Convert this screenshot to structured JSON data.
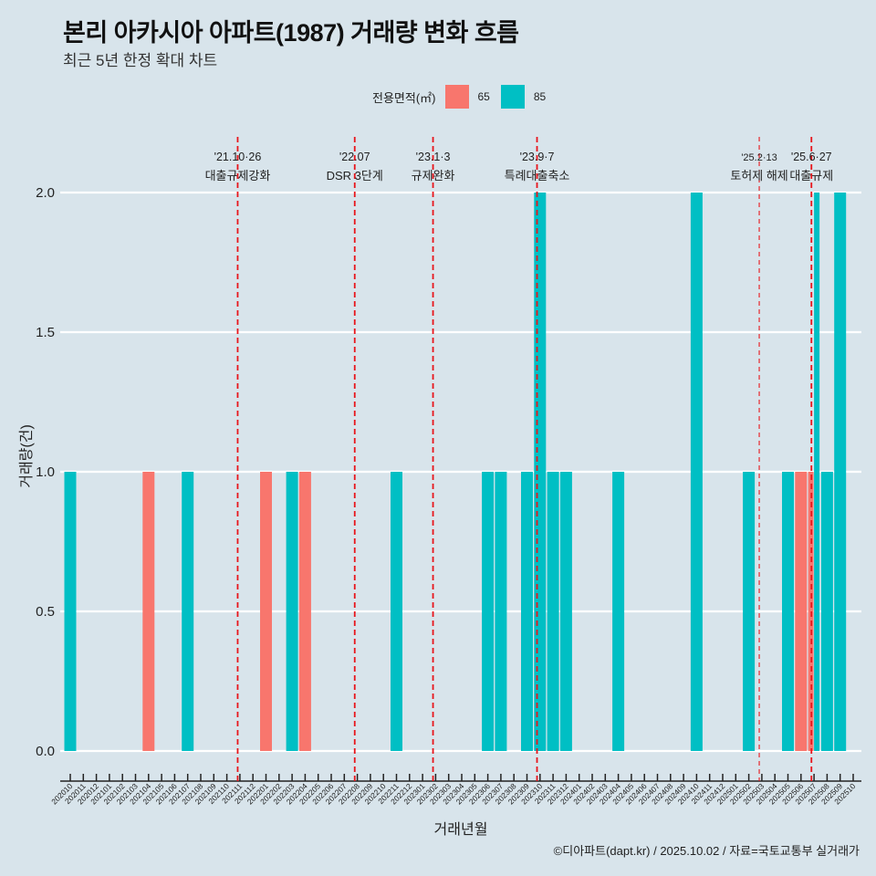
{
  "header": {
    "title": "본리 아카시아 아파트(1987) 거래량 변화 흐름",
    "subtitle": "최근 5년 한정 확대 차트"
  },
  "legend": {
    "title": "전용면적(㎡)",
    "items": [
      {
        "label": "65",
        "color": "#F8766D"
      },
      {
        "label": "85",
        "color": "#00BFC4"
      }
    ]
  },
  "caption": "©디아파트(dapt.kr) / 2025.10.02 / 자료=국토교통부 실거래가",
  "chart_data": {
    "type": "bar",
    "title": "본리 아카시아 아파트(1987) 거래량 변화 흐름",
    "subtitle": "최근 5년 한정 확대 차트",
    "xlabel": "거래년월",
    "ylabel": "거래량(건)",
    "ylim": [
      0,
      2
    ],
    "yticks": [
      "0.0",
      "0.5",
      "1.0",
      "1.5",
      "2.0"
    ],
    "ytick_values": [
      0,
      0.5,
      1.0,
      1.5,
      2.0
    ],
    "grid": true,
    "legend_position": "top",
    "categories": [
      "202010",
      "202011",
      "202012",
      "202101",
      "202102",
      "202103",
      "202104",
      "202105",
      "202106",
      "202107",
      "202108",
      "202109",
      "202110",
      "202111",
      "202112",
      "202201",
      "202202",
      "202203",
      "202204",
      "202205",
      "202206",
      "202207",
      "202208",
      "202209",
      "202210",
      "202211",
      "202212",
      "202301",
      "202302",
      "202303",
      "202304",
      "202305",
      "202306",
      "202307",
      "202308",
      "202309",
      "202310",
      "202311",
      "202312",
      "202401",
      "202402",
      "202403",
      "202404",
      "202405",
      "202406",
      "202407",
      "202408",
      "202409",
      "202410",
      "202411",
      "202412",
      "202501",
      "202502",
      "202503",
      "202504",
      "202505",
      "202506",
      "202507",
      "202508",
      "202509",
      "202510"
    ],
    "series": [
      {
        "name": "65",
        "color": "#F8766D",
        "points": [
          {
            "x": "202104",
            "y": 1
          },
          {
            "x": "202201",
            "y": 1
          },
          {
            "x": "202204",
            "y": 1
          },
          {
            "x": "202506",
            "y": 1
          },
          {
            "x": "202507",
            "y": 1
          }
        ]
      },
      {
        "name": "85",
        "color": "#00BFC4",
        "points": [
          {
            "x": "202010",
            "y": 1
          },
          {
            "x": "202107",
            "y": 1
          },
          {
            "x": "202203",
            "y": 1
          },
          {
            "x": "202211",
            "y": 1
          },
          {
            "x": "202306",
            "y": 1
          },
          {
            "x": "202307",
            "y": 1
          },
          {
            "x": "202309",
            "y": 1
          },
          {
            "x": "202310",
            "y": 2
          },
          {
            "x": "202311",
            "y": 1
          },
          {
            "x": "202312",
            "y": 1
          },
          {
            "x": "202404",
            "y": 1
          },
          {
            "x": "202410",
            "y": 2
          },
          {
            "x": "202502",
            "y": 1
          },
          {
            "x": "202505",
            "y": 1
          },
          {
            "x": "202507",
            "y": 2
          },
          {
            "x": "202508",
            "y": 1
          },
          {
            "x": "202509",
            "y": 2
          }
        ]
      }
    ],
    "events": [
      {
        "x": 12.83,
        "date": "'21.10·26",
        "label": "대출규제강화",
        "style": "thick"
      },
      {
        "x": 21.8,
        "date": "'22.07",
        "label": "DSR 3단계",
        "style": "thick"
      },
      {
        "x": 27.8,
        "date": "'23.1·3",
        "label": "규제완화",
        "style": "thick"
      },
      {
        "x": 35.77,
        "date": "'23.9·7",
        "label": "특례대출축소",
        "style": "thick"
      },
      {
        "x": 52.8,
        "date": "'25.2·13",
        "label": "토허제 해제",
        "style": "thin"
      },
      {
        "x": 56.8,
        "date": "'25.6·27",
        "label": "대출규제",
        "style": "thick"
      }
    ]
  }
}
